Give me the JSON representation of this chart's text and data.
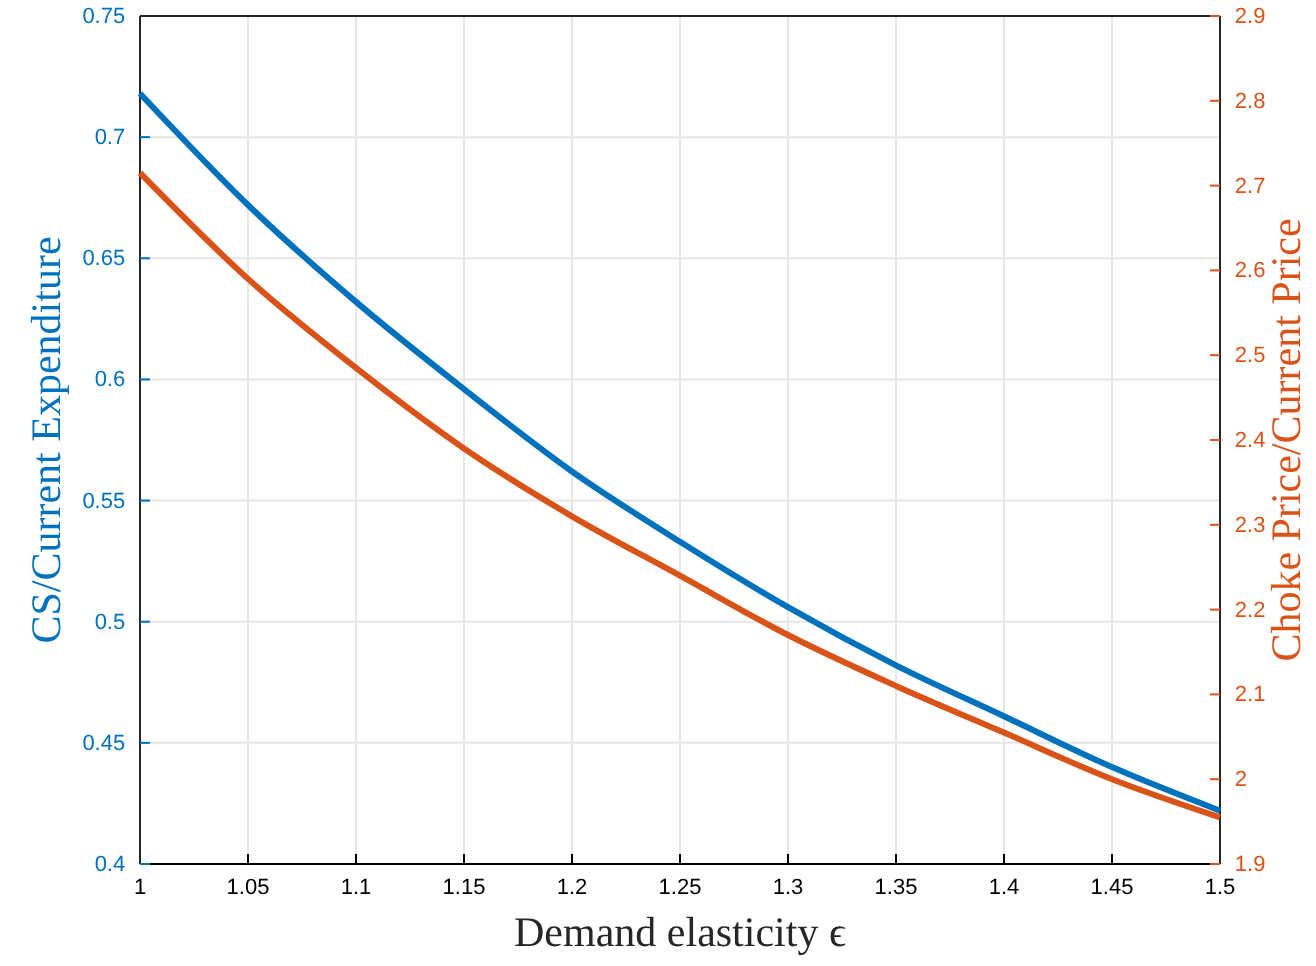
{
  "chart_data": {
    "type": "line",
    "xlabel": "Demand elasticity ϵ",
    "ylabel": "CS/Current Expenditure",
    "y2label": "Choke Price/Current Price",
    "x": [
      1,
      1.05,
      1.1,
      1.15,
      1.2,
      1.25,
      1.3,
      1.35,
      1.4,
      1.45,
      1.5
    ],
    "series": [
      {
        "color": "#0072bd",
        "values": [
          0.718,
          0.672,
          0.632,
          0.596,
          0.562,
          0.533,
          0.506,
          0.482,
          0.461,
          0.44,
          0.422
        ]
      },
      {
        "color": "#d95319",
        "axis": "y2",
        "values": [
          2.715,
          2.59,
          2.485,
          2.39,
          2.31,
          2.24,
          2.17,
          2.11,
          2.055,
          2.0,
          1.955
        ]
      }
    ],
    "xlim": [
      1,
      1.5
    ],
    "xticks": [
      1,
      1.05,
      1.1,
      1.15,
      1.2,
      1.25,
      1.3,
      1.35,
      1.4,
      1.45,
      1.5
    ],
    "ylim": [
      0.4,
      0.75
    ],
    "yticks": [
      0.4,
      0.45,
      0.5,
      0.55,
      0.6,
      0.65,
      0.7,
      0.75
    ],
    "y2lim": [
      1.9,
      2.9
    ],
    "y2ticks": [
      1.9,
      2,
      2.1,
      2.2,
      2.3,
      2.4,
      2.5,
      2.6,
      2.7,
      2.8,
      2.9
    ],
    "grid": true,
    "marker": "none",
    "line_style": "solid"
  }
}
